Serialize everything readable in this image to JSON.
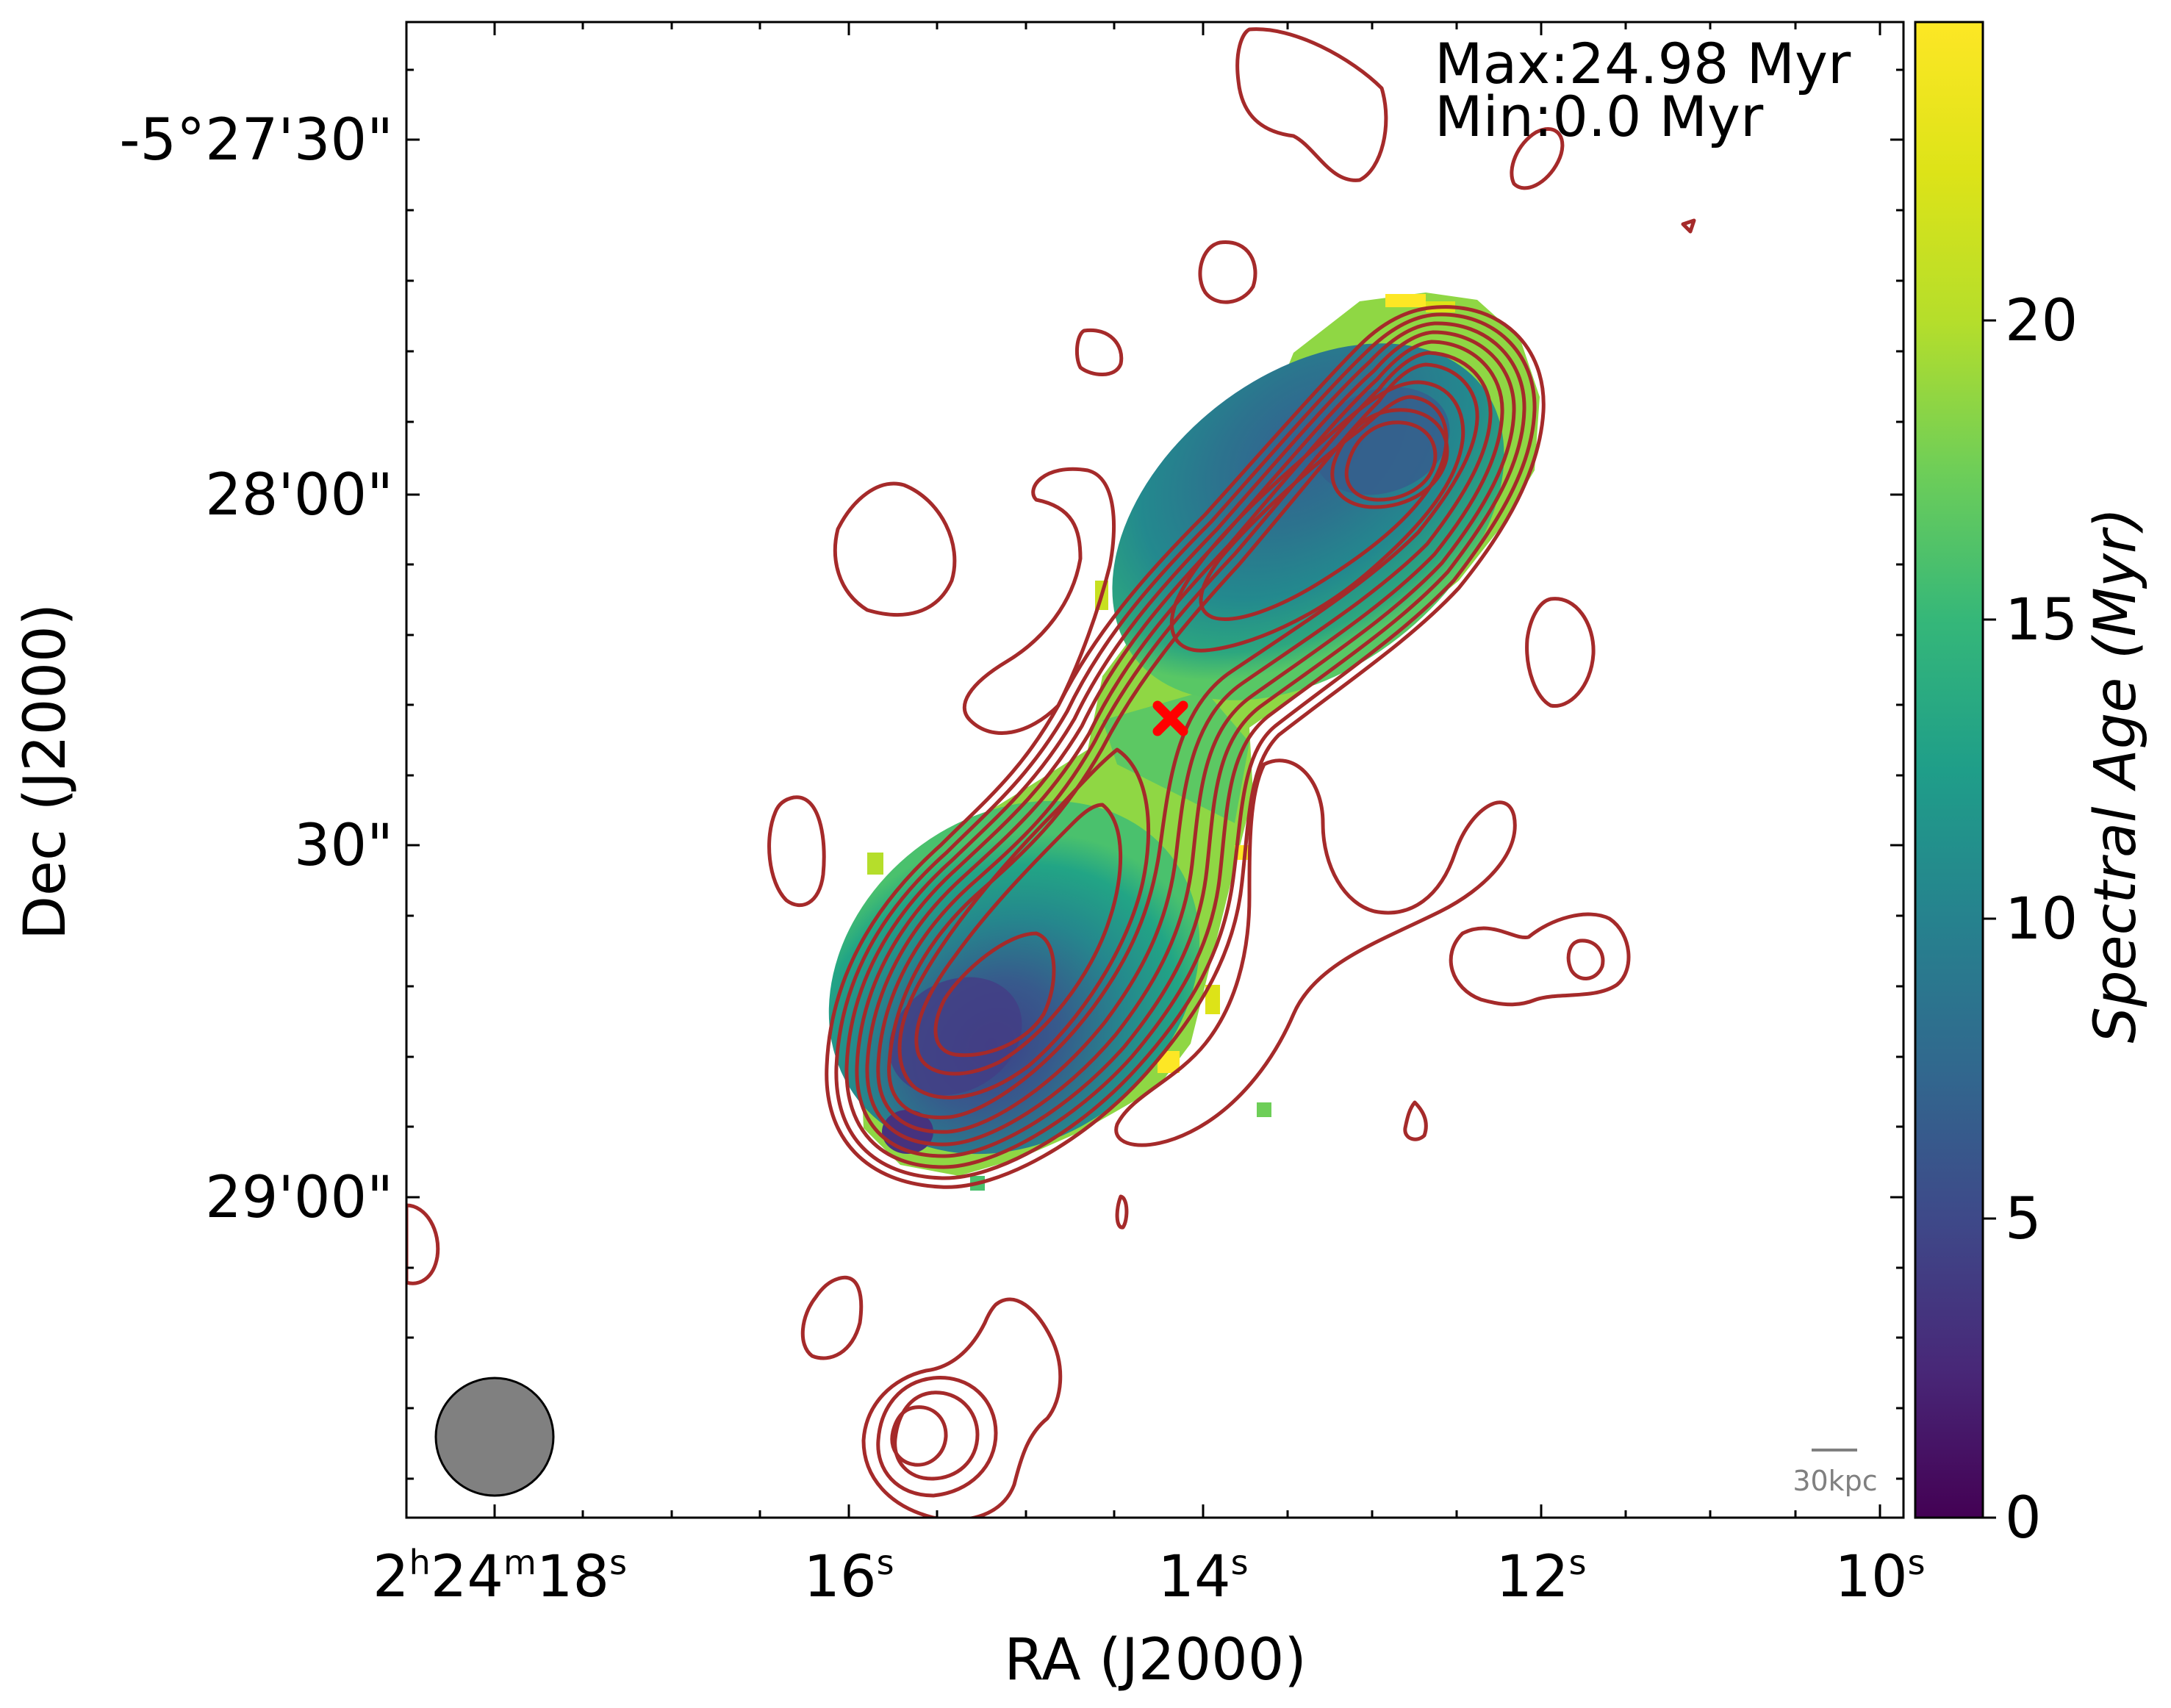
{
  "chart_data": {
    "type": "heatmap",
    "title": "",
    "xlabel": "RA (J2000)",
    "ylabel": "Dec (J2000)",
    "x_ticks": [
      {
        "h": "2",
        "hu": "h",
        "m": "24",
        "mu": "m",
        "s": "18",
        "su": "s"
      },
      {
        "s": "16",
        "su": "s"
      },
      {
        "s": "14",
        "su": "s"
      },
      {
        "s": "12",
        "su": "s"
      },
      {
        "s": "10",
        "su": "s"
      }
    ],
    "y_ticks": [
      "-5°27'30\"",
      "28'00\"",
      "30\"",
      "29'00\""
    ],
    "colorbar": {
      "label": "Spectral Age (Myr)",
      "range": [
        0,
        24.98
      ],
      "ticks": [
        "0",
        "5",
        "10",
        "15",
        "20"
      ],
      "tick_values": [
        0,
        5,
        10,
        15,
        20
      ],
      "colormap": "viridis"
    },
    "annotations": {
      "max_text": "Max:24.98 Myr",
      "min_text": "Min:0.0 Myr",
      "scale_bar": "30kpc"
    },
    "contour_color": "#a52a2a",
    "host_marker_color": "#ff0000",
    "beam_color": "#808080"
  }
}
